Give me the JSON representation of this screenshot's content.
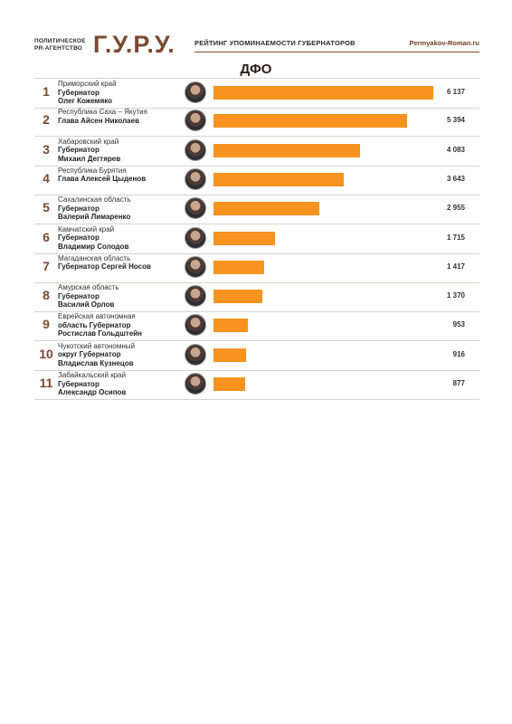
{
  "header": {
    "agency_line1": "ПОЛИТИЧЕСКОЕ",
    "agency_line2": "PR-АГЕНТСТВО",
    "brand": "Г.У.Р.У.",
    "title": "РЕЙТИНГ УПОМИНАЕМОСТИ ГУБЕРНАТОРОВ",
    "site": "Permyakov-Roman.ru"
  },
  "chart_data": {
    "type": "bar",
    "title": "ДФО",
    "orientation": "horizontal",
    "xlim": [
      0,
      6137
    ],
    "rows": [
      {
        "rank": "1",
        "region": "Приморский край",
        "role": "Губернатор",
        "person": "Олег Кожемяко",
        "value": 6137,
        "label": "6 137"
      },
      {
        "rank": "2",
        "region": "Республика Саха – Якутия",
        "role": "Глава Айсен Николаев",
        "person": "",
        "value": 5394,
        "label": "5 394"
      },
      {
        "rank": "3",
        "region": "Хабаровский край",
        "role": "Губернатор",
        "person": "Михаил Дегтярев",
        "value": 4083,
        "label": "4 083"
      },
      {
        "rank": "4",
        "region": "Республика Бурятия",
        "role": "Глава Алексей Цыденов",
        "person": "",
        "value": 3643,
        "label": "3 643"
      },
      {
        "rank": "5",
        "region": "Сахалинская область",
        "role": "Губернатор",
        "person": "Валерий Лимаренко",
        "value": 2955,
        "label": "2 955"
      },
      {
        "rank": "6",
        "region": "Камчатский край",
        "role": "Губернатор",
        "person": "Владимир Солодов",
        "value": 1715,
        "label": "1 715"
      },
      {
        "rank": "7",
        "region": "Магаданская область",
        "role": "Губернатор Сергей Носов",
        "person": "",
        "value": 1417,
        "label": "1 417"
      },
      {
        "rank": "8",
        "region": "Амурская область",
        "role": "Губернатор",
        "person": "Василий Орлов",
        "value": 1370,
        "label": "1 370"
      },
      {
        "rank": "9",
        "region": "Еврейская автономная",
        "role": "область Губернатор",
        "person": "Ростислав Гольдштейн",
        "value": 953,
        "label": "953"
      },
      {
        "rank": "10",
        "region": "Чукотский автономный",
        "role": "округ Губернатор",
        "person": "Владислав Кузнецов",
        "value": 916,
        "label": "916"
      },
      {
        "rank": "11",
        "region": "Забайкальский край",
        "role": "Губернатор",
        "person": "Александр Осипов",
        "value": 877,
        "label": "877"
      }
    ],
    "bar_color": "#f7931e",
    "grid": false,
    "legend": "none"
  }
}
